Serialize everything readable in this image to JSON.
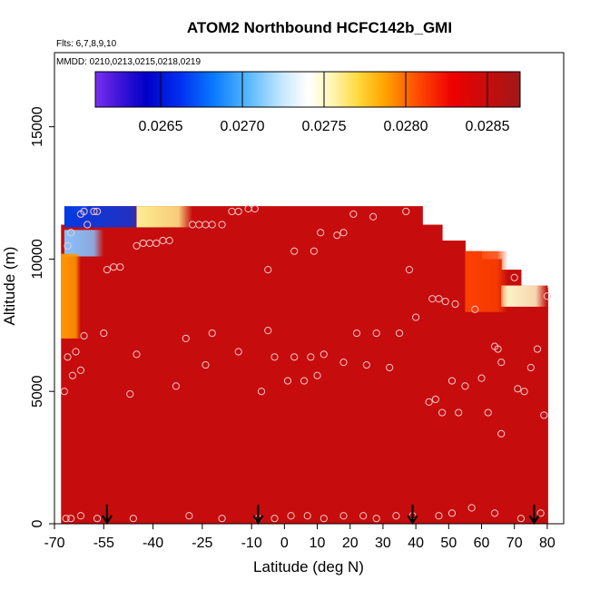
{
  "chart_data": {
    "type": "heatmap",
    "title": "ATOM2 Northbound HCFC142b_GMI",
    "flights_note": "Flts: 6,7,8,9,10",
    "dates_note": "MMDD: 0210,0213,0215,0218,0219",
    "xlabel": "Latitude (deg N)",
    "ylabel": "Altitude (m)",
    "xlim": [
      -70,
      85
    ],
    "ylim": [
      0,
      17800
    ],
    "x_ticks": [
      -70,
      -55,
      -40,
      -25,
      -10,
      0,
      10,
      20,
      30,
      40,
      50,
      60,
      70,
      80
    ],
    "x_tick_labels": [
      "-70",
      "-55",
      "-40",
      "-25",
      "-10",
      "0",
      "10",
      "20",
      "30",
      "40",
      "50",
      "60",
      "70",
      "80"
    ],
    "y_ticks": [
      0,
      5000,
      10000,
      15000
    ],
    "y_tick_labels": [
      "0",
      "5000",
      "10000",
      "15000"
    ],
    "colorbar": {
      "range": [
        0.0261,
        0.0287
      ],
      "ticks": [
        0.0265,
        0.027,
        0.0275,
        0.028,
        0.0285
      ],
      "tick_labels": [
        "0.0265",
        "0.0270",
        "0.0275",
        "0.0280",
        "0.0285"
      ]
    },
    "field_background_value": 0.0285,
    "column_tops": [
      [
        -68,
        11300
      ],
      [
        -65,
        11700
      ],
      [
        -60,
        12000
      ],
      [
        -55,
        12000
      ],
      [
        -30,
        12000
      ],
      [
        0,
        12000
      ],
      [
        30,
        12000
      ],
      [
        37,
        12000
      ],
      [
        42,
        11300
      ],
      [
        48,
        10700
      ],
      [
        55,
        10300
      ],
      [
        60,
        10000
      ],
      [
        66,
        9600
      ],
      [
        72,
        9000
      ],
      [
        80,
        8900
      ]
    ],
    "low_value_patches": [
      {
        "lat_range": [
          -67,
          -40
        ],
        "alt_range": [
          11200,
          12000
        ],
        "value": 0.0266
      },
      {
        "lat_range": [
          -67,
          -55
        ],
        "alt_range": [
          10100,
          11100
        ],
        "value": 0.0271
      },
      {
        "lat_range": [
          -45,
          -28
        ],
        "alt_range": [
          11200,
          12000
        ],
        "value": 0.0276
      },
      {
        "lat_range": [
          66,
          80
        ],
        "alt_range": [
          8200,
          9000
        ],
        "value": 0.0275
      },
      {
        "lat_range": [
          -68,
          -62
        ],
        "alt_range": [
          7000,
          10200
        ],
        "value": 0.0279
      },
      {
        "lat_range": [
          55,
          68
        ],
        "alt_range": [
          8000,
          10300
        ],
        "value": 0.0281
      }
    ],
    "sample_points": [
      [
        -66.5,
        200
      ],
      [
        -65,
        200
      ],
      [
        -62,
        300
      ],
      [
        -57,
        200
      ],
      [
        -46,
        200
      ],
      [
        -29,
        300
      ],
      [
        -19,
        200
      ],
      [
        -8,
        200
      ],
      [
        -3,
        200
      ],
      [
        2,
        300
      ],
      [
        7,
        300
      ],
      [
        12,
        200
      ],
      [
        18,
        300
      ],
      [
        24,
        300
      ],
      [
        28,
        200
      ],
      [
        34,
        300
      ],
      [
        39,
        300
      ],
      [
        47,
        300
      ],
      [
        51,
        400
      ],
      [
        57,
        600
      ],
      [
        64,
        400
      ],
      [
        72,
        200
      ],
      [
        78,
        400
      ],
      [
        -67,
        5000
      ],
      [
        -66,
        6300
      ],
      [
        -64.5,
        5600
      ],
      [
        -62,
        5800
      ],
      [
        -61,
        7100
      ],
      [
        -63.5,
        6500
      ],
      [
        -55,
        7200
      ],
      [
        -47,
        4900
      ],
      [
        -45,
        6400
      ],
      [
        -33,
        5200
      ],
      [
        -30,
        7000
      ],
      [
        -24,
        6000
      ],
      [
        -22,
        7200
      ],
      [
        -14,
        6500
      ],
      [
        -7,
        5000
      ],
      [
        -5,
        7300
      ],
      [
        -3,
        6300
      ],
      [
        1,
        5400
      ],
      [
        3,
        6300
      ],
      [
        6,
        5400
      ],
      [
        8,
        6300
      ],
      [
        10,
        5600
      ],
      [
        12,
        6400
      ],
      [
        18,
        6100
      ],
      [
        22,
        7200
      ],
      [
        25,
        6000
      ],
      [
        28,
        7200
      ],
      [
        32,
        5900
      ],
      [
        35,
        7200
      ],
      [
        44,
        4600
      ],
      [
        46,
        4700
      ],
      [
        48,
        4200
      ],
      [
        51,
        5400
      ],
      [
        53,
        4200
      ],
      [
        55,
        5200
      ],
      [
        60,
        5500
      ],
      [
        62,
        4200
      ],
      [
        64,
        6700
      ],
      [
        66,
        6100
      ],
      [
        65,
        6600
      ],
      [
        71,
        5100
      ],
      [
        73,
        5000
      ],
      [
        75,
        5900
      ],
      [
        77,
        6600
      ],
      [
        79,
        4100
      ],
      [
        66,
        3400
      ],
      [
        40,
        7800
      ],
      [
        45,
        8500
      ],
      [
        47,
        8500
      ],
      [
        52,
        8300
      ],
      [
        49,
        8400
      ],
      [
        58,
        8100
      ],
      [
        -66,
        10500
      ],
      [
        -65,
        11000
      ],
      [
        -60,
        11300
      ],
      [
        -54,
        9600
      ],
      [
        -52,
        9700
      ],
      [
        -50,
        9700
      ],
      [
        -45,
        10500
      ],
      [
        -43,
        10600
      ],
      [
        -41,
        10600
      ],
      [
        -39,
        10600
      ],
      [
        -37,
        10700
      ],
      [
        -35,
        10700
      ],
      [
        -28,
        11300
      ],
      [
        -26,
        11300
      ],
      [
        -24,
        11300
      ],
      [
        -22,
        11300
      ],
      [
        -19,
        11300
      ],
      [
        -16,
        11800
      ],
      [
        -14,
        11800
      ],
      [
        -11,
        11900
      ],
      [
        -9,
        11900
      ],
      [
        -5,
        9600
      ],
      [
        3,
        10300
      ],
      [
        9,
        10300
      ],
      [
        11,
        11000
      ],
      [
        16,
        10900
      ],
      [
        18,
        11000
      ],
      [
        21,
        11700
      ],
      [
        27,
        11600
      ],
      [
        37,
        11800
      ],
      [
        38,
        9600
      ],
      [
        -62,
        11700
      ],
      [
        -61,
        11800
      ],
      [
        -58,
        11800
      ],
      [
        -57,
        11800
      ],
      [
        70,
        9300
      ],
      [
        80,
        8600
      ]
    ],
    "flight_markers_lat": [
      -54,
      -8,
      39,
      76
    ]
  }
}
